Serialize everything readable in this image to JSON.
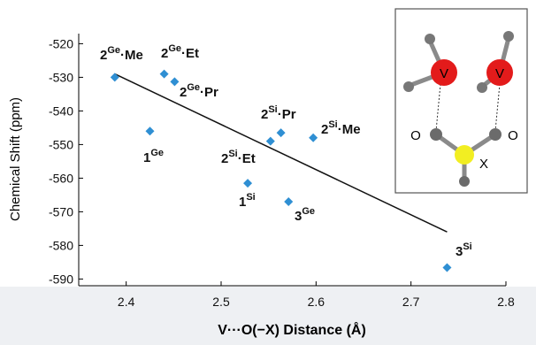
{
  "chart_data": {
    "type": "scatter",
    "x_label": "V···O(−X) Distance (Å)",
    "y_label": "Chemical Shift (ppm)",
    "xlim": [
      2.35,
      2.8
    ],
    "ylim": [
      -592,
      -517
    ],
    "xticks": [
      2.4,
      2.5,
      2.6,
      2.7,
      2.8
    ],
    "yticks": [
      -520,
      -530,
      -540,
      -550,
      -560,
      -570,
      -580,
      -590
    ],
    "color": "#2f8fd3",
    "x": [
      2.388,
      2.44,
      2.451,
      2.425,
      2.552,
      2.563,
      2.597,
      2.528,
      2.571,
      2.738
    ],
    "values": [
      -530,
      -529,
      -531.3,
      -546,
      -549,
      -546.5,
      -548,
      -561.5,
      -567,
      -586.6
    ],
    "point_labels": [
      {
        "base": "2",
        "sup": "Ge",
        "suffix": "·Me"
      },
      {
        "base": "2",
        "sup": "Ge",
        "suffix": "·Et"
      },
      {
        "base": "2",
        "sup": "Ge",
        "suffix": "·Pr"
      },
      {
        "base": "1",
        "sup": "Ge"
      },
      {
        "base": "2",
        "sup": "Si",
        "suffix": "·Et"
      },
      {
        "base": "2",
        "sup": "Si",
        "suffix": "·Pr"
      },
      {
        "base": "2",
        "sup": "Si",
        "suffix": "·Me"
      },
      {
        "base": "1",
        "sup": "Si"
      },
      {
        "base": "3",
        "sup": "Ge"
      },
      {
        "base": "3",
        "sup": "Si"
      }
    ],
    "trendline": {
      "x": [
        2.388,
        2.738
      ],
      "values": [
        -529,
        -576
      ]
    },
    "inset_labels": {
      "v1": "V",
      "v2": "V",
      "o1": "O",
      "o2": "O",
      "x": "X"
    }
  }
}
